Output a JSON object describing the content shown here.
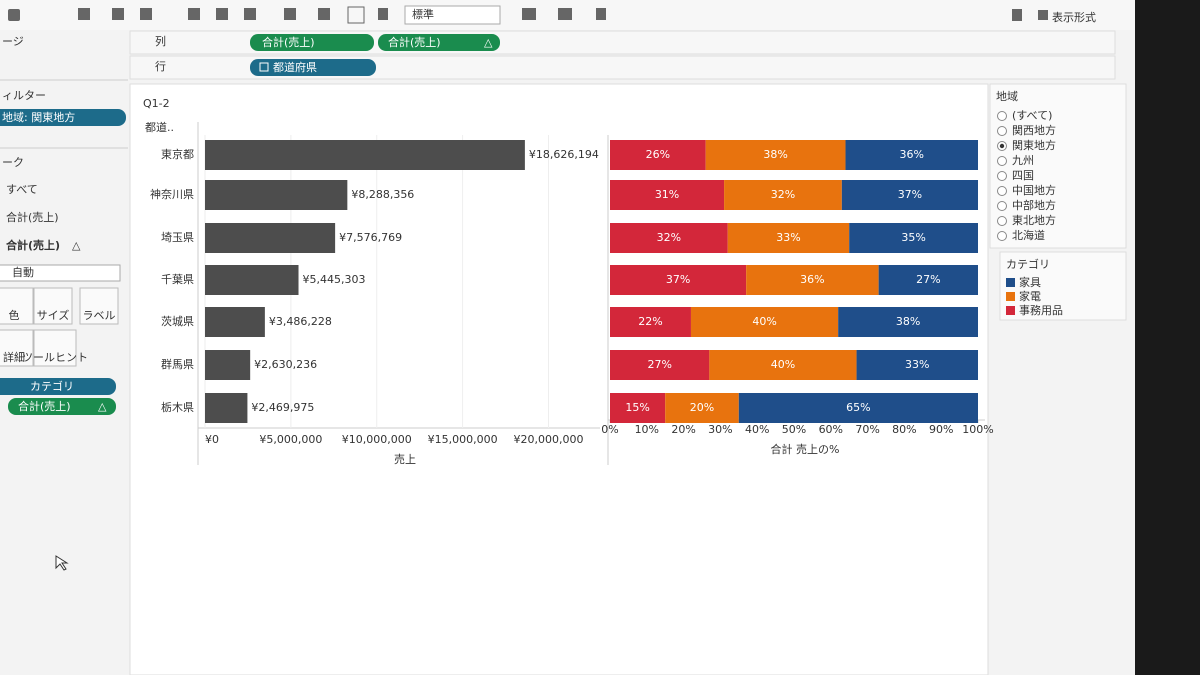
{
  "toolbar": {
    "format_dropdown": "標準",
    "show_me": "表示形式"
  },
  "shelves": {
    "columns_label": "列",
    "rows_label": "行",
    "columns": [
      "合計(売上)",
      "合計(売上)"
    ],
    "column_delta": "△",
    "rows": [
      "都道府県"
    ]
  },
  "left_panel": {
    "pages": "ージ",
    "filters": "ィルター",
    "filter_pill": "地域: 関東地方",
    "marks": "ーク",
    "marks_tabs": [
      "すべて",
      "合計(売上)",
      "合計(売上)"
    ],
    "marks_tab_delta": "△",
    "mark_type": "自動",
    "mark_buttons": [
      "色",
      "サイズ",
      "ラベル",
      "詳細",
      "ツールヒント"
    ],
    "mark_pills": [
      "カテゴリ",
      "合計(売上)"
    ],
    "mark_pill_delta": "△"
  },
  "sheet": {
    "title": "Q1-2",
    "row_header": "都道.."
  },
  "filter_card": {
    "title": "地域",
    "options": [
      "(すべて)",
      "関西地方",
      "関東地方",
      "九州",
      "四国",
      "中国地方",
      "中部地方",
      "東北地方",
      "北海道"
    ],
    "selected": "関東地方"
  },
  "chart_data": [
    {
      "type": "bar",
      "orientation": "horizontal",
      "categories": [
        "東京都",
        "神奈川県",
        "埼玉県",
        "千葉県",
        "茨城県",
        "群馬県",
        "栃木県"
      ],
      "values": [
        18626194,
        8288356,
        7576769,
        5445303,
        3486228,
        2630236,
        2469975
      ],
      "value_labels": [
        "¥18,626,194",
        "¥8,288,356",
        "¥7,576,769",
        "¥5,445,303",
        "¥3,486,228",
        "¥2,630,236",
        "¥2,469,975"
      ],
      "color": "#4d4d4d",
      "xlim": [
        0,
        23000000
      ],
      "xticks": [
        {
          "value": 0,
          "label": "¥0"
        },
        {
          "value": 5000000,
          "label": "¥5,000,000"
        },
        {
          "value": 10000000,
          "label": "¥10,000,000"
        },
        {
          "value": 15000000,
          "label": "¥15,000,000"
        },
        {
          "value": 20000000,
          "label": "¥20,000,000"
        }
      ],
      "x_label": "売上",
      "grid": true
    },
    {
      "type": "stacked_percent_bar",
      "legend_title": "カテゴリ",
      "series": [
        {
          "name": "家具",
          "color": "#1f4e8a",
          "values": [
            36,
            37,
            35,
            27,
            38,
            33,
            65
          ],
          "value_labels": [
            "36%",
            "37%",
            "35%",
            "27%",
            "38%",
            "33%",
            "65%"
          ]
        },
        {
          "name": "家電",
          "color": "#e8730e",
          "values": [
            38,
            32,
            33,
            36,
            40,
            40,
            20
          ],
          "value_labels": [
            "38%",
            "32%",
            "33%",
            "36%",
            "40%",
            "40%",
            "20%"
          ]
        },
        {
          "name": "事務用品",
          "color": "#d3273a",
          "values": [
            26,
            31,
            32,
            37,
            22,
            27,
            15
          ],
          "value_labels": [
            "26%",
            "31%",
            "32%",
            "37%",
            "22%",
            "27%",
            "15%"
          ]
        }
      ],
      "xlim": [
        0,
        100
      ],
      "xticks": [
        {
          "value": 0,
          "label": "0%"
        },
        {
          "value": 10,
          "label": "10%"
        },
        {
          "value": 20,
          "label": "20%"
        },
        {
          "value": 30,
          "label": "30%"
        },
        {
          "value": 40,
          "label": "40%"
        },
        {
          "value": 50,
          "label": "50%"
        },
        {
          "value": 60,
          "label": "60%"
        },
        {
          "value": 70,
          "label": "70%"
        },
        {
          "value": 80,
          "label": "80%"
        },
        {
          "value": 90,
          "label": "90%"
        },
        {
          "value": 100,
          "label": "100%"
        }
      ],
      "x_label": "合計 売上の%",
      "grid": false
    }
  ]
}
